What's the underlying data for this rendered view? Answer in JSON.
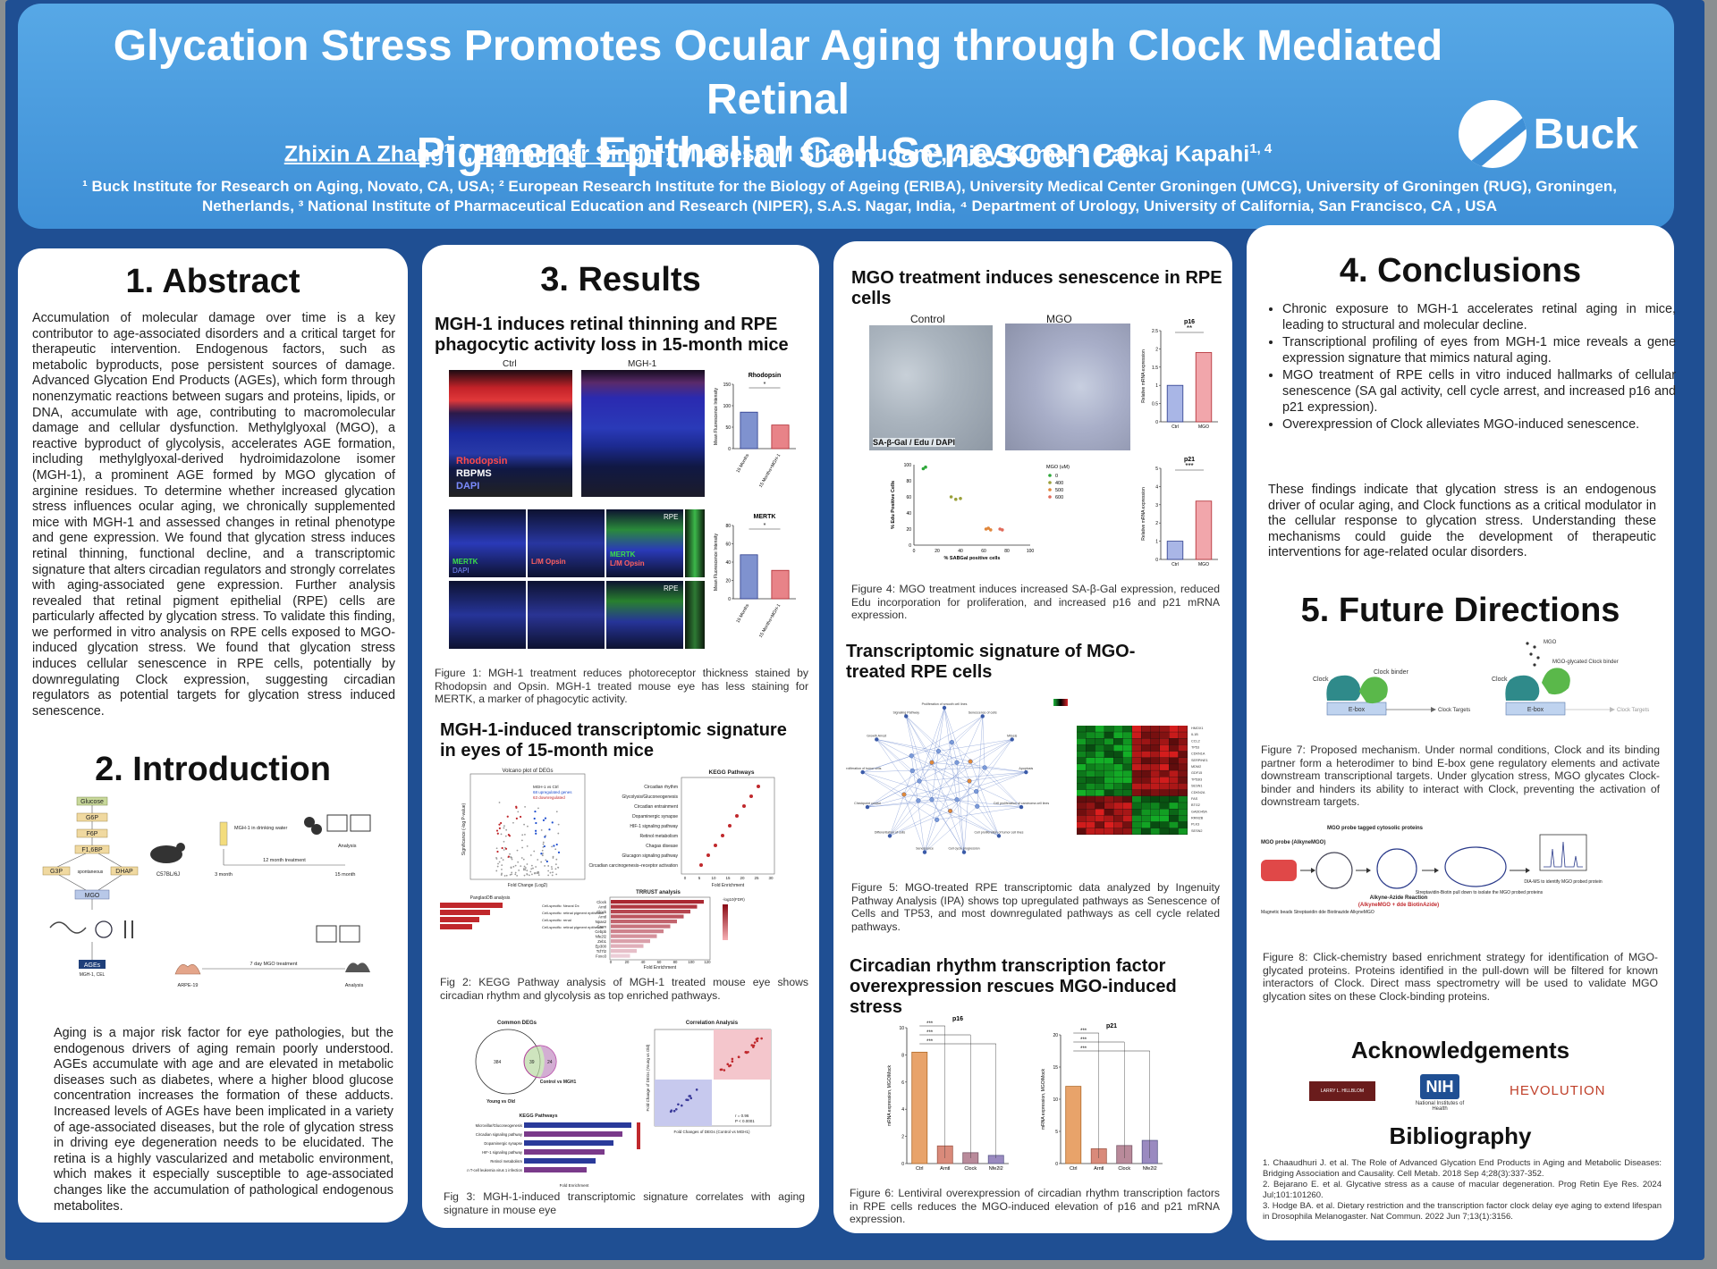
{
  "header": {
    "title_line1": "Glycation Stress Promotes Ocular Aging through Clock Mediated Retinal",
    "title_line2": "Pigment Epithelial Cell Senescence",
    "authors": [
      {
        "name": "Zhixin A Zhang",
        "sup": "1, 2",
        "underline": true
      },
      {
        "name": "Parminder Singh",
        "sup": "1",
        "underline": true
      },
      {
        "name": "Muniesh M Shanmugam",
        "sup": "1",
        "underline": false
      },
      {
        "name": "Ajay Kumar",
        "sup": "3",
        "underline": false
      },
      {
        "name": "Pankaj Kapahi",
        "sup": "1, 4",
        "underline": false
      }
    ],
    "affil_line1": "¹ Buck Institute for Research on Aging, Novato, CA, USA; ² European Research Institute for the Biology of Ageing (ERIBA), University Medical Center Groningen (UMCG), University of Groningen (RUG), Groningen,",
    "affil_line2": "Netherlands, ³ National Institute of Pharmaceutical Education and Research (NIPER), S.A.S. Nagar, India, ⁴ Department of Urology, University of California, San Francisco, CA , USA",
    "logo_text": "Buck"
  },
  "abstract": {
    "heading": "1. Abstract",
    "text": "Accumulation of molecular damage over time is a key contributor to age-associated disorders and a critical target for therapeutic intervention. Endogenous factors, such as metabolic byproducts, pose persistent sources of damage. Advanced Glycation End Products (AGEs), which form through nonenzymatic reactions between sugars and proteins, lipids, or DNA, accumulate with age, contributing to macromolecular damage and cellular dysfunction. Methylglyoxal (MGO), a reactive byproduct of glycolysis, accelerates AGE formation, including methylglyoxal-derived hydroimidazolone isomer (MGH-1), a prominent AGE formed by MGO glycation of arginine residues. To determine whether increased glycation stress influences ocular aging, we chronically supplemented mice with MGH-1 and assessed changes in retinal phenotype and gene expression. We found that glycation stress induces retinal thinning, functional decline, and a transcriptomic signature that alters circadian regulators and strongly correlates with aging-associated gene expression. Further analysis revealed that retinal pigment epithelial (RPE) cells are particularly affected by glycation stress. To validate this finding, we performed in vitro analysis on RPE cells exposed to MGO-induced glycation stress. We found that glycation stress induces cellular senescence in RPE cells, potentially by downregulating Clock expression, suggesting circadian regulators as potential targets for glycation stress induced senescence."
  },
  "introduction": {
    "heading": "2. Introduction",
    "diagram": {
      "glucose": "Glucose",
      "g6p": "G6P",
      "f6p": "F6P",
      "f16bp": "F1,6BP",
      "g3p": "G3P",
      "dhap": "DHAP",
      "spontaneous": "spontaneous",
      "mgo": "MGO",
      "ages": "AGEs",
      "ages_sub": "MGH-1, CEL",
      "mouse": "C57BL/6J",
      "water": "MGH-1 in drinking water",
      "treat12": "12 month treatment",
      "m3": "3 month",
      "m15": "15 month",
      "analysis1": "Analysis",
      "arpe": "ARPE-19",
      "treat7": "7 day MGO treatment",
      "analysis2": "Analysis"
    },
    "text": "Aging is a major risk factor for eye pathologies, but the endogenous drivers of aging remain poorly understood. AGEs accumulate with age and are elevated in metabolic diseases such as diabetes, where a higher blood glucose concentration increases the formation of these adducts. Increased levels of AGEs have been implicated in a variety of age-associated diseases, but the role of glycation stress in driving eye degeneration needs to be elucidated. The retina is a highly vascularized and metabolic environment, which makes it especially susceptible to age-associated changes like the accumulation of pathological endogenous metabolites."
  },
  "results": {
    "heading": "3. Results",
    "sub1": "MGH-1 induces retinal thinning and RPE phagocytic activity loss in 15-month mice",
    "fig1": {
      "ctrl": "Ctrl",
      "mgh1": "MGH-1",
      "rhodopsin": "Rhodopsin",
      "rbpms": "RBPMS",
      "dapi": "DAPI",
      "chart_title_top": "Rhodopsin",
      "chart_title_bottom": "MERTK",
      "ylabel": "Mean Fluorescence Intensity",
      "row1": "15 Months",
      "row2": "15 Months+MGH-1",
      "mertk": "MERTK",
      "lm_opsin": "L/M Opsin",
      "rpe": "RPE",
      "x1": "15 Months",
      "x2": "15 Months+MGH-1",
      "star": "*"
    },
    "fig1_caption": "Figure 1: MGH-1 treatment reduces photoreceptor thickness stained by Rhodopsin and Opsin. MGH-1 treated mouse eye has less staining for MERTK, a marker of phagocytic activity.",
    "sub2": "MGH-1-induced transcriptomic signature in eyes of 15-month mice",
    "fig2": {
      "volcano_title": "Volcano plot of DEGs",
      "volcano_x": "Fold Change (Log2)",
      "volcano_y": "Significance (-log P-value)",
      "legend1": "MGH-1 vs Ctrl",
      "legend2": "68 upregulated genes",
      "legend3": "63 downregulated",
      "kegg_title": "KEGG Pathways",
      "kegg_x": "Fold Enrichment",
      "kegg_terms": [
        "Circadian rhythm",
        "Glycolysis/Gluconeogenesis",
        "Circadian entrainment",
        "Dopaminergic synapse",
        "HIF-1 signaling pathway",
        "Retinol metabolism",
        "Chagas disease",
        "Glucagon signaling pathway",
        "Circadian carcinogenesis–receptor activation"
      ],
      "kegg_ticks": [
        "0",
        "5",
        "10",
        "15",
        "20",
        "25",
        "30"
      ],
      "panglao_title": "PanglaoDB analysis",
      "panglao_terms": [
        "Cell-specific: Neural Dx",
        "Cell-specific: retinal pigment epithelium",
        "Cell-specific: renal",
        "Cell-specific: retinal pigment epithelium"
      ],
      "trrust_title": "TRRUST analysis",
      "trrust_terms": [
        "Clock",
        "Arntl",
        "Clock",
        "Arntl",
        "Npas2",
        "Crem",
        "Cebpb",
        "Nfe2l2",
        "Zeb1",
        "Ep300",
        "Tcf7l2",
        "Foxo3"
      ],
      "trrust_x": "Fold Enrichment",
      "trrust_ticks": [
        "0",
        "20",
        "40",
        "60",
        "80",
        "100",
        "120"
      ],
      "trrust_legend": "-log10(FDR)"
    },
    "fig2_caption": "Fig 2: KEGG Pathway analysis of MGH-1 treated mouse eye shows circadian rhythm and glycolysis as top enriched pathways.",
    "fig3": {
      "venn_title": "Common DEGs",
      "venn_left": "Young vs Old",
      "venn_right": "Control vs MGH1",
      "venn_a": "384",
      "venn_b": "39",
      "venn_c": "24",
      "corr_title": "Correlation Analysis",
      "corr_x": "Fold Changes of DEGs (Control vs MGH1)",
      "corr_y": "Fold Change of DEGs (Young vs Old)",
      "corr_r": "r = 0.96",
      "corr_p": "P < 0.0001",
      "kegg_title": "KEGG Pathways",
      "kegg_x": "Fold Enrichment",
      "kegg_terms": [
        "Microvillar/Gluconeogenesis",
        "Circadian signaling pathway",
        "Dopaminergic synapse",
        "HIF-1 signaling pathway",
        "Retinol metabolism",
        "Human T-cell leukemia virus 1 infection"
      ]
    },
    "fig3_caption": "Fig 3: MGH-1-induced transcriptomic signature correlates with aging signature in mouse eye"
  },
  "col3": {
    "sub1": "MGO treatment induces senescence in RPE cells",
    "fig4": {
      "control": "Control",
      "mgo": "MGO",
      "stain": "SA-β-Gal / Edu / DAPI",
      "p16": "p16",
      "p21": "p21",
      "ylabel": "Relative mRNA expression",
      "ctrl": "Ctrl",
      "mgo_x": "MGO",
      "sig_p16": "**",
      "sig_p21": "***",
      "scatter_x": "% SABGal positive cells",
      "scatter_y": "% Edu Positive Cells",
      "legend_title": "MGO (uM)",
      "legend": [
        "0",
        "400",
        "500",
        "600"
      ],
      "xticks": [
        "0",
        "20",
        "40",
        "60",
        "80",
        "100"
      ],
      "yticks": [
        "0",
        "20",
        "40",
        "60",
        "80",
        "100"
      ]
    },
    "fig4_caption": "Figure 4: MGO treatment induces increased SA-β-Gal expression, reduced Edu incorporation for proliferation, and increased p16 and p21 mRNA expression.",
    "sub2": "Transcriptomic signature of MGO-treated RPE cells",
    "fig5": {
      "net_labels": [
        "Proliferation of smooth cell lines",
        "Senescence of cells",
        "Mitosis",
        "Apoptosis",
        "Cell proliferation of carcinoma cell lines",
        "Cell proliferation of tumor cell lines",
        "Cell cycle progression",
        "Senescence",
        "Differentiation of cells",
        "Checkpoint control",
        "Proliferation of tumor cells",
        "Growth Arrest",
        "Signaling Pathway"
      ],
      "genes": [
        "HMOX1",
        "IL1B",
        "CCL2",
        "TP53",
        "CDKN1A",
        "SERPINE1",
        "MDM2",
        "GDF15",
        "TP53I3",
        "SESN1",
        "CDKN2A",
        "FAS",
        "BTG2",
        "GADD45A",
        "RRM2B",
        "PLK3",
        "SESN2"
      ]
    },
    "fig5_caption": "Figure 5: MGO-treated RPE transcriptomic data analyzed by Ingenuity Pathway Analysis (IPA) shows top upregulated pathways as Senescence of Cells and TP53, and most downregulated pathways as cell cycle related pathways.",
    "sub3": "Circadian rhythm transcription factor overexpression rescues MGO-induced stress",
    "fig6": {
      "p16": "p16",
      "p21": "p21",
      "ylabel": "mRNA expression, MGO/Mock",
      "cats": [
        "Ctrl",
        "Arntl",
        "Clock",
        "Nfe2l2"
      ],
      "sig": "***"
    },
    "fig6_caption": "Figure 6: Lentiviral overexpression of circadian rhythm transcription factors in RPE cells reduces the MGO-induced elevation of p16 and p21 mRNA expression."
  },
  "conclusions": {
    "heading": "4. Conclusions",
    "bullets": [
      "Chronic exposure to MGH-1 accelerates retinal aging in mice, leading to structural and molecular decline.",
      "Transcriptional profiling of eyes from MGH-1 mice reveals a gene expression signature that mimics natural aging.",
      "MGO treatment of RPE cells in vitro induced hallmarks of cellular senescence (SA gal activity, cell cycle arrest, and increased p16 and p21 expression).",
      "Overexpression of Clock alleviates MGO-induced senescence."
    ],
    "summary": "These findings indicate that glycation stress is an endogenous driver of ocular aging, and Clock functions as a critical modulator in the cellular response to glycation stress. Understanding these mechanisms could guide the development of therapeutic interventions for age-related ocular disorders."
  },
  "future": {
    "heading": "5. Future Directions",
    "fig7": {
      "clock": "Clock",
      "binder": "Clock binder",
      "ebox": "E-box",
      "targets": "Clock Targets",
      "mgo": "MGO",
      "glycated": "MGO-glycated Clock binder"
    },
    "fig7_caption": "Figure 7: Proposed mechanism. Under normal conditions, Clock and its binding partner form a heterodimer to bind E-box gene regulatory elements and activate downstream transcriptional targets. Under glycation stress, MGO glycates Clock-binder and hinders its ability to interact with Clock, preventing the activation of downstream targets.",
    "fig8": {
      "probe": "MGO probe (AlkyneMGO)",
      "tagged": "MGO probe tagged cytosolic proteins",
      "reaction": "Alkyne-Azide Reaction",
      "reaction_sub": "(AlkyneMGO + dde BiotinAzide)",
      "pulldown": "Streptavidin-Biotin pull down to isolate the MGO probed proteins",
      "ms": "DIA-MS to identify MGO probed protein",
      "legend": "Magnetic beads   Streptavidin   dde Biotinazide   AlkyneMGO"
    },
    "fig8_caption": "Figure 8: Click-chemistry based enrichment strategy for identification of MGO-glycated proteins. Proteins identified in the pull-down will be filtered for known interactors of Clock. Direct mass spectrometry will be used to validate MGO glycation sites on these Clock-binding proteins."
  },
  "acknowledgements": {
    "heading": "Acknowledgements",
    "logos": [
      "LARRY L. HILLBLOM FOUNDATION",
      "NIH",
      "National Institutes of Health",
      "HEVOLUTION"
    ]
  },
  "bibliography": {
    "heading": "Bibliography",
    "refs": [
      "1.  Chaaudhuri J. et al. The Role of Advanced Glycation End Products in Aging and Metabolic Diseases: Bridging Association and Causality. Cell Metab. 2018 Sep 4;28(3):337-352.",
      "2.  Bejarano E. et al. Glycative stress as a cause of macular degeneration. Prog Retin Eye Res. 2024 Jul;101:101260.",
      "3.  Hodge BA. et al. Dietary restriction and the transcription factor clock delay eye aging to extend lifespan in Drosophila Melanogaster. Nat Commun. 2022 Jun 7;13(1):3156."
    ]
  },
  "chart_data": [
    {
      "type": "bar",
      "title": "Rhodopsin",
      "categories": [
        "15 Months",
        "15 Months+MGH-1"
      ],
      "values": [
        85,
        55
      ],
      "ylabel": "Mean Fluorescence Intensity",
      "ylim": [
        0,
        150
      ],
      "yticks": [
        0,
        50,
        100,
        150
      ]
    },
    {
      "type": "bar",
      "title": "MERTK",
      "categories": [
        "15 Months",
        "15 Months+MGH-1"
      ],
      "values": [
        48,
        31
      ],
      "ylabel": "Mean Fluorescence Intensity",
      "ylim": [
        0,
        80
      ],
      "yticks": [
        0,
        20,
        40,
        60,
        80
      ]
    },
    {
      "type": "bar",
      "title": "p16",
      "categories": [
        "Ctrl",
        "MGO"
      ],
      "values": [
        1.0,
        1.9
      ],
      "ylabel": "Relative mRNA expression",
      "ylim": [
        0,
        2.5
      ],
      "yticks": [
        0.0,
        0.5,
        1.0,
        1.5,
        2.0,
        2.5
      ]
    },
    {
      "type": "bar",
      "title": "p21",
      "categories": [
        "Ctrl",
        "MGO"
      ],
      "values": [
        1.0,
        3.2
      ],
      "ylabel": "Relative mRNA expression",
      "ylim": [
        0,
        5
      ],
      "yticks": [
        0,
        1,
        2,
        3,
        4,
        5
      ]
    },
    {
      "type": "scatter",
      "xlabel": "% SABGal positive cells",
      "ylabel": "% Edu Positive Cells",
      "xlim": [
        0,
        100
      ],
      "ylim": [
        0,
        100
      ],
      "series": [
        {
          "name": "0",
          "points": [
            [
              8,
              95
            ],
            [
              10,
              97
            ]
          ]
        },
        {
          "name": "400",
          "points": [
            [
              32,
              60
            ],
            [
              36,
              57
            ],
            [
              40,
              58
            ]
          ]
        },
        {
          "name": "500",
          "points": [
            [
              62,
              20
            ],
            [
              64,
              21
            ],
            [
              66,
              19
            ]
          ]
        },
        {
          "name": "600",
          "points": [
            [
              74,
              20
            ],
            [
              76,
              19
            ]
          ]
        }
      ]
    },
    {
      "type": "bar",
      "title": "p16",
      "categories": [
        "Ctrl",
        "Arntl",
        "Clock",
        "Nfe2l2"
      ],
      "values": [
        8.2,
        1.3,
        0.8,
        0.6
      ],
      "ylabel": "mRNA expression, MGO/Mock",
      "ylim": [
        0,
        10
      ]
    },
    {
      "type": "bar",
      "title": "p21",
      "categories": [
        "Ctrl",
        "Arntl",
        "Clock",
        "Nfe2l2"
      ],
      "values": [
        12,
        2.3,
        2.8,
        3.6
      ],
      "ylabel": "mRNA expression, MGO/Mock",
      "ylim": [
        0,
        20
      ]
    }
  ]
}
